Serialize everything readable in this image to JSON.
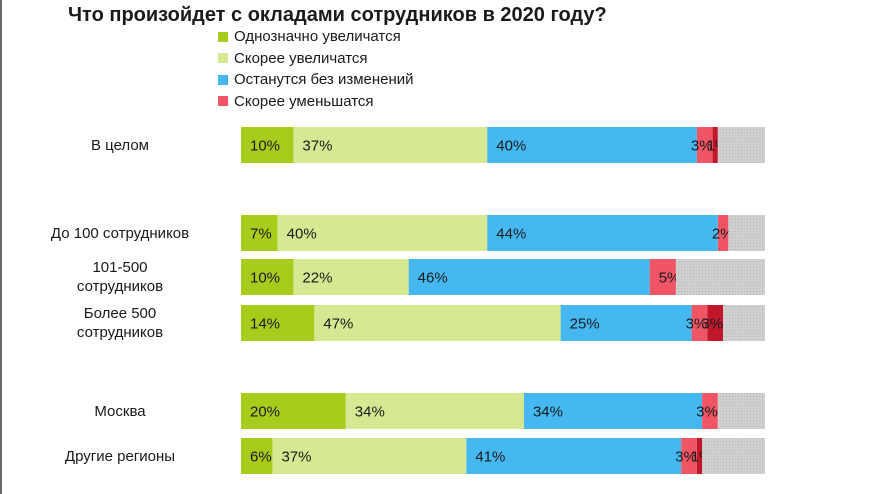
{
  "chart_data": {
    "type": "bar",
    "orientation": "horizontal",
    "stacked": true,
    "title": "Что произойдет с окладами сотрудников в 2020 году?",
    "legend_position": "top",
    "categories": [
      "В целом",
      "До 100 сотрудников",
      "101-500\nсотрудников",
      "Более 500\nсотрудников",
      "Москва",
      "Другие регионы"
    ],
    "series": [
      {
        "name": "Однозначно увеличатся",
        "color": "#a8cc1c",
        "values": [
          10,
          7,
          10,
          14,
          20,
          6
        ],
        "labels": [
          "10%",
          "7%",
          "10%",
          "14%",
          "20%",
          "6%"
        ]
      },
      {
        "name": "Скорее увеличатся",
        "color": "#d6e892",
        "values": [
          37,
          40,
          22,
          47,
          34,
          37
        ],
        "labels": [
          "37%",
          "40%",
          "22%",
          "47%",
          "34%",
          "37%"
        ]
      },
      {
        "name": "Останутся без изменений",
        "color": "#45b8f2",
        "values": [
          40,
          44,
          46,
          25,
          34,
          41
        ],
        "labels": [
          "40%",
          "44%",
          "46%",
          "25%",
          "34%",
          "41%"
        ]
      },
      {
        "name": "Скорее уменьшатся",
        "color": "#f05565",
        "values": [
          3,
          2,
          5,
          3,
          3,
          3
        ],
        "labels": [
          "3%",
          "2%",
          "5%",
          "3%",
          "3%",
          "3%"
        ]
      },
      {
        "name": "",
        "color": "#c0182a",
        "values": [
          1,
          0,
          0,
          3,
          0,
          1
        ],
        "labels": [
          "1%",
          "",
          "",
          "3%",
          "",
          "1%"
        ]
      },
      {
        "name": "",
        "color": "#cccccc",
        "values": [
          9,
          7,
          17,
          8,
          9,
          12
        ],
        "labels": [
          "",
          "",
          "",
          "",
          "",
          ""
        ]
      }
    ],
    "xlim": [
      0,
      100
    ],
    "grid": false
  }
}
